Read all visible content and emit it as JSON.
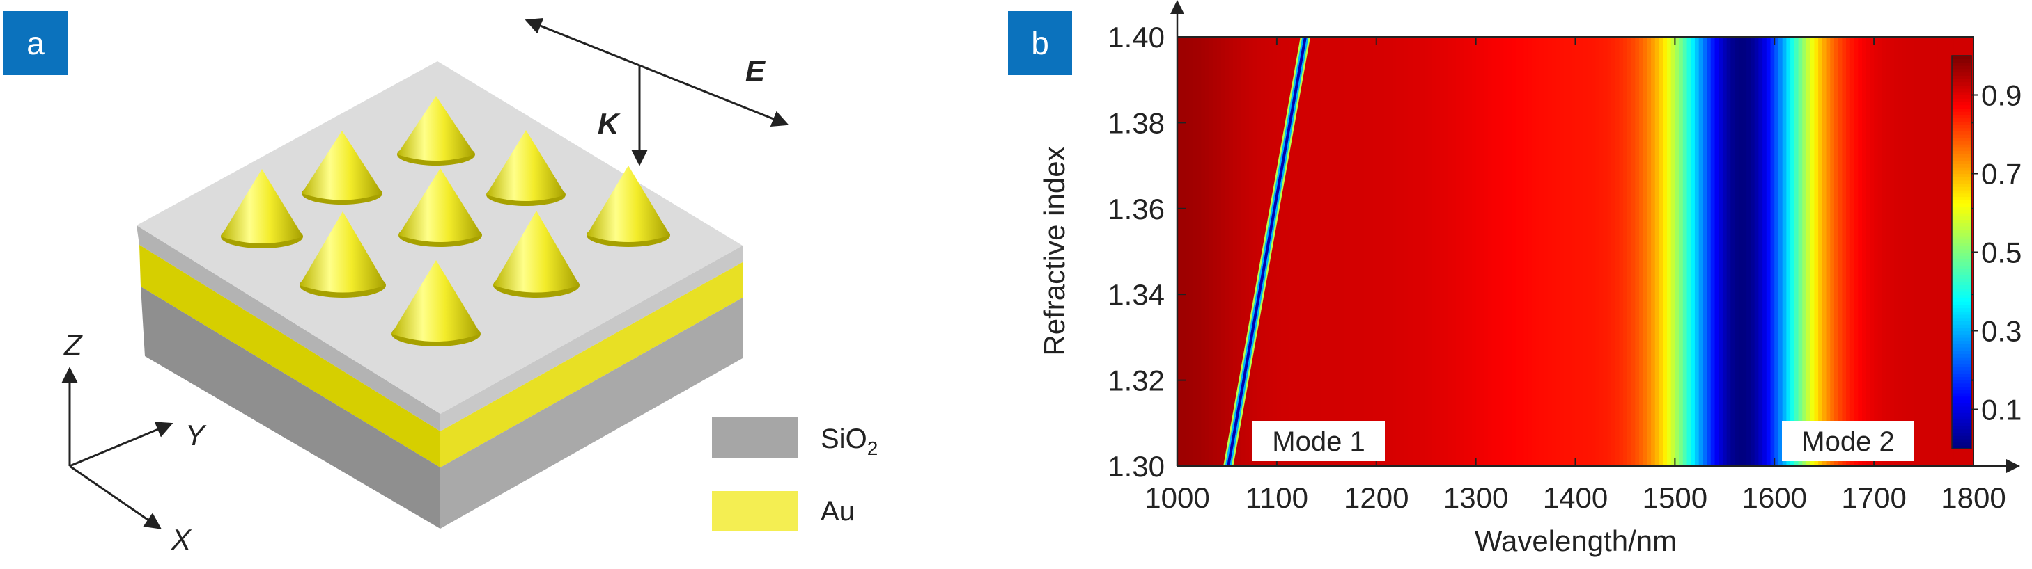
{
  "panel_a": {
    "badge": "a",
    "field_label": "E",
    "wave_label": "K",
    "axis_z": "Z",
    "axis_y": "Y",
    "axis_x": "X",
    "legend": [
      {
        "name": "SiO",
        "sub": "2",
        "color": "#a6a6a6"
      },
      {
        "name": "Au",
        "sub": "",
        "color": "#f4ee52"
      }
    ]
  },
  "panel_b": {
    "badge": "b",
    "mode1_label": "Mode 1",
    "mode2_label": "Mode 2"
  },
  "chart_data": {
    "type": "heatmap",
    "xlabel": "Wavelength/nm",
    "ylabel": "Refractive index",
    "xlim": [
      1000,
      1800
    ],
    "ylim": [
      1.3,
      1.4
    ],
    "x_ticks": [
      1000,
      1100,
      1200,
      1300,
      1400,
      1500,
      1600,
      1700,
      1800
    ],
    "y_ticks": [
      1.3,
      1.32,
      1.34,
      1.36,
      1.38,
      1.4
    ],
    "x_tick_labels": [
      "1000",
      "1100",
      "1200",
      "1300",
      "1400",
      "1500",
      "1600",
      "1700",
      "1800"
    ],
    "y_tick_labels": [
      "1.30",
      "1.32",
      "1.34",
      "1.36",
      "1.38",
      "1.40"
    ],
    "colorbar": {
      "range": [
        0.0,
        1.0
      ],
      "ticks": [
        0.1,
        0.3,
        0.5,
        0.7,
        0.9
      ],
      "tick_labels": [
        "0.1",
        "0.3",
        "0.5",
        "0.7",
        "0.9"
      ],
      "colormap": "jet"
    },
    "modes": [
      {
        "name": "Mode 1",
        "resonance_wavelength_at_n": [
          [
            1.3,
            1050
          ],
          [
            1.4,
            1130
          ]
        ],
        "min_value": 0.05
      },
      {
        "name": "Mode 2",
        "resonance_wavelength": 1565,
        "min_value": 0.0
      }
    ]
  }
}
